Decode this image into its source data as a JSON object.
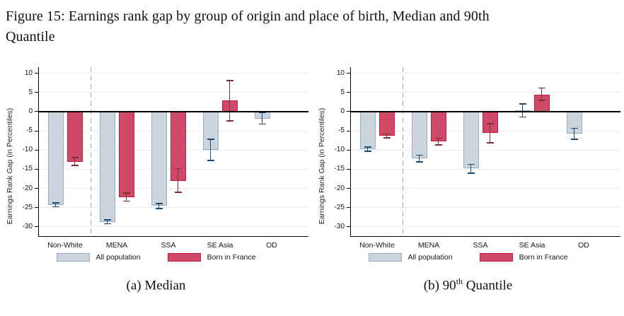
{
  "figure": {
    "title_line1": "Figure 15: Earnings rank gap by group of origin and place of birth, Median and 90th",
    "title_line2": "Quantile"
  },
  "colors": {
    "all_fill": "#ccd5de",
    "all_border": "#96acbf",
    "all_error": "#1e4a6d",
    "bif_fill": "#cf4a67",
    "bif_border": "#c41a49",
    "bif_error": "#7f2d38",
    "grid": "#e9ebee",
    "dashed": "#a9a9a9",
    "axis": "#000000"
  },
  "chart_data": [
    {
      "type": "bar",
      "caption": {
        "pre": "(a) Median",
        "sup": "",
        "post": ""
      },
      "ylabel": "Earnings Rank Gap (in Percentiles)",
      "ylim": [
        -30,
        10
      ],
      "yticks": [
        10,
        5,
        0,
        -5,
        -10,
        -15,
        -20,
        -25,
        -30
      ],
      "grid": true,
      "legend_position": "bottom",
      "separator_after_category": "Non-White",
      "categories": [
        "Non-White",
        "MENA",
        "SSA",
        "SE Asia",
        "OD"
      ],
      "series": [
        {
          "name": "All population",
          "values": [
            -24.3,
            -28.7,
            -24.5,
            -9.9,
            -1.8
          ],
          "ci": [
            [
              -24.8,
              -23.8
            ],
            [
              -29.2,
              -28.2
            ],
            [
              -25.2,
              -23.9
            ],
            [
              -12.7,
              -7.2
            ],
            [
              -3.2,
              -0.2
            ]
          ]
        },
        {
          "name": "Born in France",
          "values": [
            -13.0,
            -22.3,
            -18.0,
            2.9,
            null
          ],
          "ci": [
            [
              -14.0,
              -12.0
            ],
            [
              -23.3,
              -21.2
            ],
            [
              -21.0,
              -14.8
            ],
            [
              -2.4,
              8.1
            ],
            null
          ]
        }
      ]
    },
    {
      "type": "bar",
      "caption": {
        "pre": "(b) 90",
        "sup": "th",
        "post": " Quantile"
      },
      "ylabel": "Earnings Rank Gap (in Percentiles)",
      "ylim": [
        -30,
        10
      ],
      "yticks": [
        10,
        5,
        0,
        -5,
        -10,
        -15,
        -20,
        -25,
        -30
      ],
      "grid": true,
      "legend_position": "bottom",
      "separator_after_category": "Non-White",
      "categories": [
        "Non-White",
        "MENA",
        "SSA",
        "SE Asia",
        "OD"
      ],
      "series": [
        {
          "name": "All population",
          "values": [
            -9.7,
            -12.2,
            -14.8,
            0.3,
            -5.7
          ],
          "ci": [
            [
              -10.3,
              -9.2
            ],
            [
              -13.1,
              -11.3
            ],
            [
              -16.0,
              -13.7
            ],
            [
              -1.4,
              2.0
            ],
            [
              -7.2,
              -4.3
            ]
          ]
        },
        {
          "name": "Born in France",
          "values": [
            -6.3,
            -7.8,
            -5.5,
            4.5,
            null
          ],
          "ci": [
            [
              -6.8,
              -5.8
            ],
            [
              -8.7,
              -6.9
            ],
            [
              -8.1,
              -3.1
            ],
            [
              2.9,
              6.2
            ],
            null
          ]
        }
      ]
    }
  ]
}
